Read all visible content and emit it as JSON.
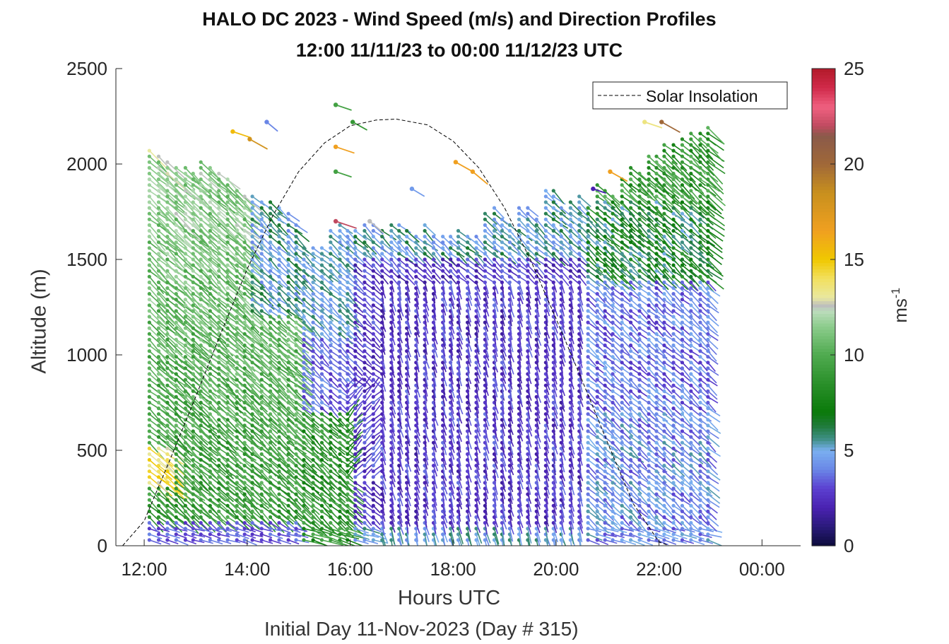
{
  "chart_data": {
    "type": "scatter",
    "subtype": "wind-barb-profiles",
    "title": "HALO DC 2023 - Wind Speed (m/s) and Direction Profiles",
    "subtitle": "12:00 11/11/23 to 00:00 11/12/23  UTC",
    "xlabel": "Hours UTC",
    "xlabel2": "Initial Day 11-Nov-2023 (Day # 315)",
    "ylabel": "Altitude (m)",
    "xlim": [
      11.45,
      24.75
    ],
    "ylim": [
      0,
      2500
    ],
    "x_ticks": [
      12,
      14,
      16,
      18,
      20,
      22,
      24
    ],
    "x_tick_labels": [
      "12:00",
      "14:00",
      "16:00",
      "18:00",
      "20:00",
      "22:00",
      "00:00"
    ],
    "y_ticks": [
      0,
      500,
      1000,
      1500,
      2000,
      2500
    ],
    "y_tick_labels": [
      "0",
      "500",
      "1000",
      "1500",
      "2000",
      "2500"
    ],
    "grid": false,
    "legend": {
      "position": "top-right",
      "entries": [
        {
          "label": "Solar Insolation",
          "style": "dashed",
          "color": "#000000"
        }
      ]
    },
    "colorbar": {
      "label": "ms",
      "label_superscript": "-1",
      "range": [
        0,
        25
      ],
      "ticks": [
        0,
        5,
        10,
        15,
        20,
        25
      ],
      "tick_labels": [
        "0",
        "5",
        "10",
        "15",
        "20",
        "25"
      ],
      "stops": [
        [
          0.0,
          "#0b0b3a"
        ],
        [
          1.0,
          "#2a1a7a"
        ],
        [
          2.0,
          "#4a22b0"
        ],
        [
          3.0,
          "#5b3fd0"
        ],
        [
          4.0,
          "#6a86e6"
        ],
        [
          5.0,
          "#7ab0f0"
        ],
        [
          5.6,
          "#3f8f86"
        ],
        [
          6.3,
          "#1f7a3a"
        ],
        [
          7.0,
          "#0a7a0a"
        ],
        [
          8.5,
          "#2a8f2a"
        ],
        [
          10.0,
          "#4faa4f"
        ],
        [
          11.5,
          "#8ccc8c"
        ],
        [
          12.3,
          "#bcdcbc"
        ],
        [
          12.6,
          "#bdbdbd"
        ],
        [
          13.0,
          "#e8e8a0"
        ],
        [
          14.0,
          "#f2e060"
        ],
        [
          15.0,
          "#f0c800"
        ],
        [
          16.5,
          "#f0a020"
        ],
        [
          18.5,
          "#c8901e"
        ],
        [
          20.0,
          "#a06838"
        ],
        [
          21.5,
          "#8a5a4a"
        ],
        [
          22.0,
          "#c04a60"
        ],
        [
          23.0,
          "#f06080"
        ],
        [
          24.0,
          "#d02a4a"
        ],
        [
          25.0,
          "#b21a2a"
        ]
      ]
    },
    "solar_insolation": {
      "peak_altitude": 2235,
      "peak_hour": 16.9,
      "x": [
        11.58,
        12.0,
        12.5,
        13.0,
        13.5,
        14.0,
        14.5,
        15.0,
        15.5,
        16.0,
        16.5,
        16.9,
        17.5,
        18.0,
        18.5,
        19.0,
        19.5,
        20.0,
        20.5,
        21.0,
        21.5,
        22.0,
        22.2,
        24.75
      ],
      "y": [
        0,
        130,
        450,
        780,
        1120,
        1450,
        1730,
        1960,
        2110,
        2200,
        2230,
        2235,
        2205,
        2120,
        1980,
        1770,
        1500,
        1190,
        870,
        540,
        220,
        20,
        0,
        0
      ]
    },
    "profiles": {
      "times": [
        12.1,
        12.28,
        12.45,
        12.62,
        12.8,
        12.95,
        13.1,
        13.28,
        13.45,
        13.62,
        13.8,
        13.95,
        14.1,
        14.28,
        14.45,
        14.62,
        14.8,
        14.95,
        15.1,
        15.28,
        15.45,
        15.62,
        15.8,
        15.95,
        16.1,
        16.28,
        16.45,
        16.62,
        16.8,
        16.95,
        17.1,
        17.28,
        17.45,
        17.62,
        17.8,
        17.95,
        18.1,
        18.28,
        18.45,
        18.62,
        18.8,
        18.95,
        19.1,
        19.28,
        19.45,
        19.62,
        19.8,
        19.95,
        20.1,
        20.28,
        20.45,
        20.62,
        20.8,
        20.95,
        21.1,
        21.28,
        21.45,
        21.62,
        21.8,
        21.95,
        22.1,
        22.28,
        22.45,
        22.62,
        22.8,
        22.95
      ],
      "top_altitude": [
        2090,
        2050,
        2030,
        1990,
        1990,
        1960,
        2010,
        1980,
        1950,
        1920,
        1880,
        1840,
        1840,
        1820,
        1820,
        1780,
        1760,
        1700,
        1580,
        1560,
        1580,
        1660,
        1680,
        1660,
        1660,
        1680,
        1700,
        1660,
        1700,
        1680,
        1660,
        1640,
        1700,
        1640,
        1620,
        1620,
        1660,
        1640,
        1620,
        1740,
        1780,
        1720,
        1700,
        1770,
        1790,
        1720,
        1880,
        1860,
        1790,
        1800,
        1830,
        1780,
        1900,
        1880,
        1830,
        1940,
        1990,
        1960,
        2040,
        2060,
        2110,
        2120,
        2150,
        2160,
        2180,
        2210
      ],
      "level_spacing_m": 30,
      "bottom_altitude": 30,
      "note_direction": "barb line drawn from dot toward direction"
    },
    "isolated_points": [
      {
        "x": 13.72,
        "y": 2170,
        "speed": 15.5
      },
      {
        "x": 14.05,
        "y": 2130,
        "speed": 18.0
      },
      {
        "x": 14.38,
        "y": 2220,
        "speed": 4.0
      },
      {
        "x": 15.72,
        "y": 2310,
        "speed": 9.5
      },
      {
        "x": 16.05,
        "y": 2220,
        "speed": 9.0
      },
      {
        "x": 15.72,
        "y": 2090,
        "speed": 16.5
      },
      {
        "x": 15.72,
        "y": 1960,
        "speed": 9.5
      },
      {
        "x": 17.2,
        "y": 1870,
        "speed": 4.5
      },
      {
        "x": 15.72,
        "y": 1700,
        "speed": 22.0
      },
      {
        "x": 16.38,
        "y": 1700,
        "speed": 12.6
      },
      {
        "x": 18.05,
        "y": 2010,
        "speed": 16.5
      },
      {
        "x": 18.38,
        "y": 1960,
        "speed": 16.5
      },
      {
        "x": 21.05,
        "y": 1960,
        "speed": 16.5
      },
      {
        "x": 20.72,
        "y": 1870,
        "speed": 2.0
      },
      {
        "x": 21.72,
        "y": 2220,
        "speed": 13.5
      },
      {
        "x": 22.05,
        "y": 2220,
        "speed": 20.0
      }
    ]
  }
}
